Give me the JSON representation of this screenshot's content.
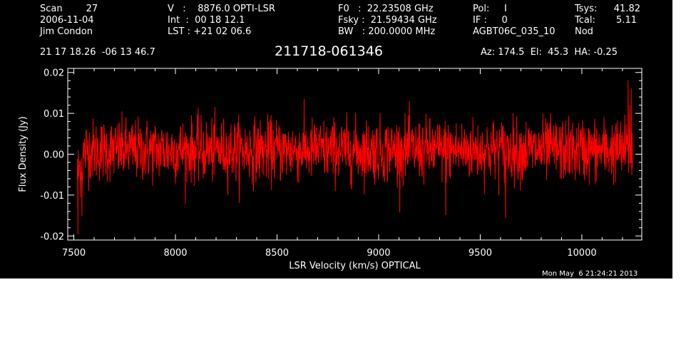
{
  "header": {
    "col1": [
      "Scan        27",
      "2006-11-04",
      "Jim Condon"
    ],
    "col2": [
      "V   :    8876.0 OPTI-LSR",
      "Int  :  00 18 12.1",
      "LST : +21 02 06.6"
    ],
    "col3": [
      "F0   :  22.23508 GHz",
      "Fsky :  21.59434 GHz",
      "BW   : 200.0000 MHz"
    ],
    "col4": [
      "Pol:     I",
      "IF :     0",
      "AGBT06C_035_10"
    ],
    "col5": [
      "Tsys:",
      "Tcal:",
      "Nod"
    ],
    "col5_values": [
      "41.82",
      "5.11",
      ""
    ],
    "coords": "21 17 18.26  -06 13 46.7",
    "source": "211718-061346",
    "pointing": "Az: 174.5  El:  45.3  HA: -0.25",
    "timestamp": "Mon May  6 21:24:21 2013"
  },
  "colors": {
    "background": "#000000",
    "axes": "#ffffff",
    "trace": "#ff0000"
  },
  "chart_data": {
    "type": "line",
    "xlabel": "LSR Velocity (km/s) OPTICAL",
    "ylabel": "Flux Density (Jy)",
    "xlim": [
      7470,
      10295
    ],
    "ylim": [
      -0.021,
      0.021
    ],
    "xticks": [
      7500,
      8000,
      8500,
      9000,
      9500,
      10000
    ],
    "xtick_labels": [
      "7500",
      "8000",
      "8500",
      "9000",
      "9500",
      "10000"
    ],
    "yticks": [
      -0.02,
      -0.01,
      0.0,
      0.01,
      0.02
    ],
    "ytick_labels": [
      "-0.02",
      "-0.01",
      "0.00",
      "0.01",
      "0.02"
    ],
    "series": [
      {
        "x_start": 7517,
        "x_end": 10249,
        "n_points": 1800,
        "mean": 0.001,
        "rms": 0.0038,
        "color": "#ff0000",
        "features": [
          {
            "x": 7520,
            "y": -0.0195
          },
          {
            "x": 7540,
            "y": -0.015
          },
          {
            "x": 9330,
            "y": -0.0148
          },
          {
            "x": 9625,
            "y": -0.0155
          },
          {
            "x": 10228,
            "y": 0.018
          },
          {
            "x": 10235,
            "y": 0.012
          },
          {
            "x": 10243,
            "y": 0.016
          }
        ]
      }
    ]
  }
}
